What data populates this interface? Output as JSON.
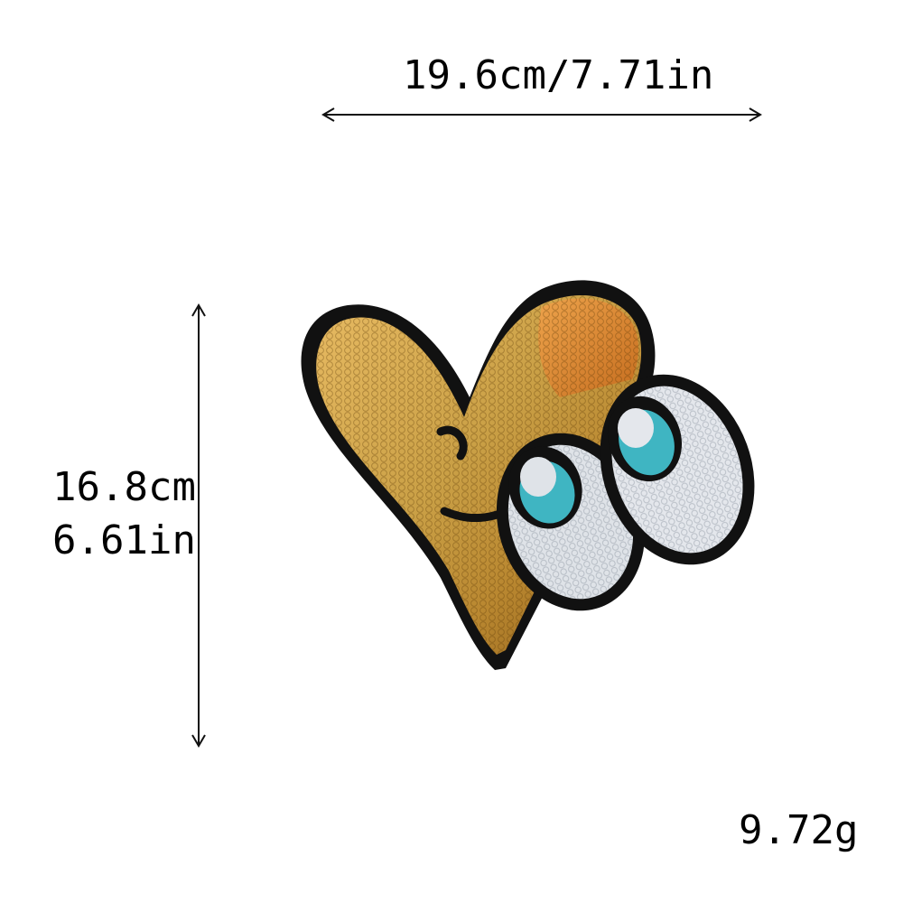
{
  "dimensions": {
    "width_label": "19.6cm/7.71in",
    "height_cm_label": "16.8cm",
    "height_in_label": "6.61in"
  },
  "weight_label": "9.72g",
  "colors": {
    "gold": "#d9a441",
    "gold_dark": "#8a5a12",
    "orange": "#e0822a",
    "eye_white": "#dfe3e8",
    "iris": "#3fb5c2",
    "outline": "#111111"
  }
}
